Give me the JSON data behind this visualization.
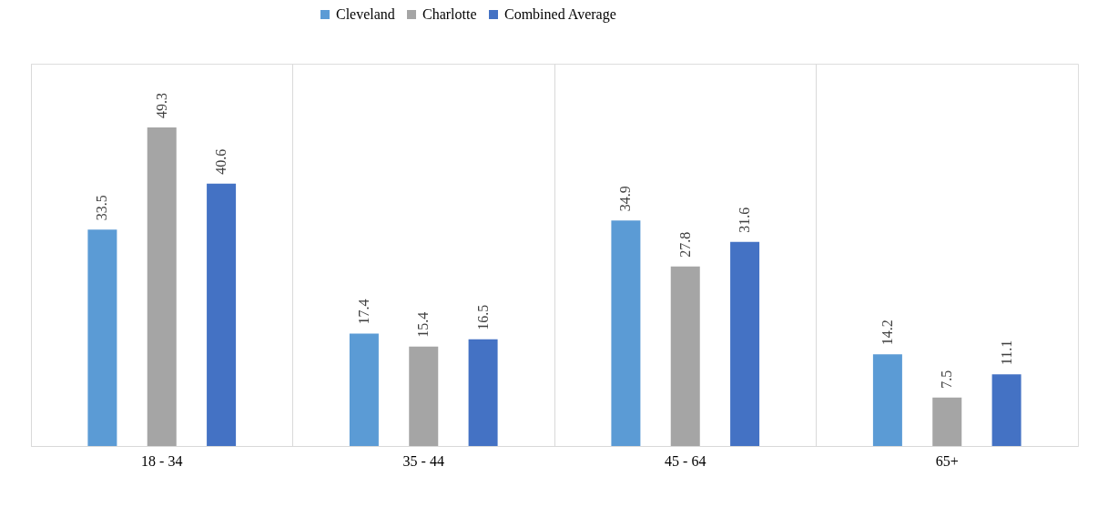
{
  "chart_data": {
    "type": "bar",
    "categories": [
      "18 - 34",
      "35 - 44",
      "45 - 64",
      "65+"
    ],
    "series": [
      {
        "name": "Cleveland",
        "color": "#5b9bd5",
        "values": [
          33.5,
          17.4,
          34.9,
          14.2
        ]
      },
      {
        "name": "Charlotte",
        "color": "#a5a5a5",
        "values": [
          49.3,
          15.4,
          27.8,
          7.5
        ]
      },
      {
        "name": "Combined Average",
        "color": "#4472c4",
        "values": [
          40.6,
          16.5,
          31.6,
          11.1
        ]
      }
    ],
    "data_labels": true,
    "grid": "x",
    "legend": "top"
  }
}
